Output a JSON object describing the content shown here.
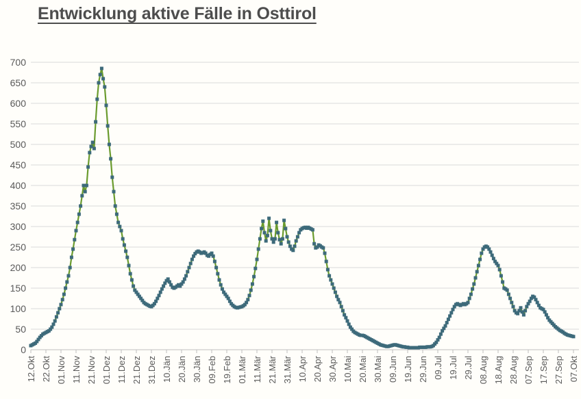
{
  "page": {
    "background": "#fffefa"
  },
  "chart_data": {
    "type": "line",
    "title": "Entwicklung aktive Fälle in Osttirol",
    "xlabel": "",
    "ylabel": "",
    "ylim": [
      0,
      700
    ],
    "y_tick_step": 50,
    "y_tick_labels": [
      "0",
      "50",
      "100",
      "150",
      "200",
      "250",
      "300",
      "350",
      "400",
      "450",
      "500",
      "550",
      "600",
      "650",
      "700"
    ],
    "x_tick_labels": [
      "12.Okt",
      "22.Okt",
      "01.Nov",
      "11.Nov",
      "21.Nov",
      "01.Dez",
      "11.Dez",
      "21.Dez",
      "31.Dez",
      "10.Jän",
      "20.Jän",
      "30.Jän",
      "09.Feb",
      "19.Feb",
      "01.Mär",
      "11.Mär",
      "21.Mär",
      "31.Mär",
      "10.Apr",
      "20.Apr",
      "30.Apr",
      "10.Mai",
      "20.Mai",
      "30.Mai",
      "09.Jun",
      "19.Jun",
      "29.Jun",
      "09.Jul",
      "19.Jul",
      "29.Jul",
      "08.Aug",
      "18.Aug",
      "28.Aug",
      "07.Sep",
      "17.Sep",
      "27.Sep",
      "07.Okt"
    ],
    "tick_every_n_points": 10,
    "grid": true,
    "legend": false,
    "line_color": "#6a9b2e",
    "marker_color": "#3d6a7a",
    "marker_shape": "square",
    "gridline_color": "#d9d9d9",
    "axis_line_color": "#bfbfbf",
    "axis_label_color": "#595959",
    "values": [
      10,
      12,
      14,
      16,
      20,
      25,
      30,
      34,
      38,
      40,
      42,
      44,
      46,
      50,
      55,
      62,
      70,
      80,
      90,
      100,
      110,
      122,
      135,
      150,
      165,
      180,
      200,
      225,
      245,
      268,
      290,
      310,
      330,
      350,
      375,
      400,
      385,
      400,
      445,
      480,
      495,
      505,
      490,
      555,
      610,
      650,
      670,
      685,
      660,
      640,
      595,
      545,
      500,
      465,
      420,
      385,
      350,
      330,
      310,
      300,
      290,
      270,
      255,
      240,
      225,
      205,
      185,
      170,
      155,
      145,
      140,
      135,
      130,
      125,
      120,
      115,
      112,
      110,
      108,
      106,
      105,
      108,
      112,
      118,
      125,
      132,
      140,
      148,
      155,
      162,
      168,
      172,
      165,
      158,
      152,
      150,
      152,
      155,
      158,
      155,
      160,
      165,
      172,
      180,
      190,
      200,
      210,
      220,
      228,
      234,
      238,
      240,
      238,
      235,
      236,
      238,
      235,
      230,
      228,
      232,
      235,
      228,
      215,
      200,
      185,
      170,
      158,
      148,
      140,
      135,
      130,
      125,
      118,
      112,
      108,
      105,
      103,
      102,
      103,
      104,
      105,
      107,
      110,
      115,
      122,
      132,
      145,
      160,
      178,
      198,
      220,
      245,
      270,
      295,
      313,
      285,
      265,
      278,
      320,
      290,
      270,
      262,
      270,
      310,
      285,
      268,
      258,
      270,
      315,
      295,
      275,
      262,
      252,
      245,
      242,
      252,
      265,
      275,
      285,
      292,
      295,
      297,
      298,
      296,
      298,
      296,
      294,
      292,
      258,
      248,
      250,
      255,
      253,
      250,
      248,
      235,
      215,
      195,
      180,
      170,
      160,
      150,
      140,
      130,
      122,
      115,
      105,
      95,
      85,
      78,
      70,
      62,
      55,
      50,
      45,
      42,
      40,
      38,
      36,
      35,
      35,
      34,
      32,
      30,
      28,
      26,
      24,
      22,
      20,
      18,
      16,
      14,
      12,
      11,
      10,
      9,
      8,
      8,
      9,
      10,
      11,
      12,
      12,
      11,
      10,
      9,
      8,
      7,
      7,
      6,
      6,
      5,
      5,
      5,
      5,
      5,
      5,
      5,
      6,
      6,
      6,
      6,
      6,
      7,
      7,
      7,
      8,
      10,
      14,
      18,
      24,
      30,
      38,
      46,
      52,
      58,
      66,
      74,
      82,
      90,
      98,
      105,
      110,
      112,
      110,
      108,
      110,
      112,
      110,
      112,
      115,
      125,
      135,
      148,
      160,
      175,
      190,
      205,
      220,
      235,
      245,
      250,
      252,
      250,
      245,
      238,
      230,
      222,
      215,
      210,
      205,
      195,
      180,
      165,
      150,
      148,
      145,
      135,
      125,
      115,
      105,
      95,
      90,
      88,
      95,
      102,
      92,
      85,
      95,
      105,
      112,
      118,
      125,
      130,
      128,
      122,
      115,
      108,
      102,
      100,
      98,
      92,
      85,
      78,
      72,
      68,
      64,
      60,
      56,
      53,
      50,
      47,
      45,
      43,
      40,
      38,
      36,
      35,
      34,
      33,
      32
    ]
  }
}
